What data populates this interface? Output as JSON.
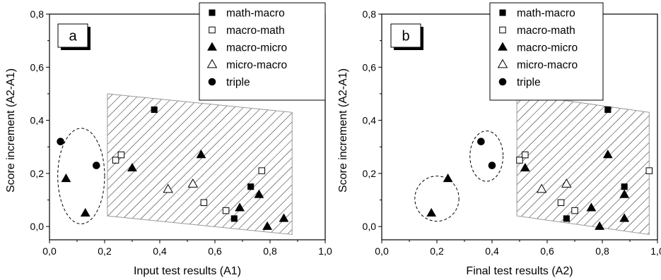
{
  "chart_data": [
    {
      "type": "scatter",
      "panel_label": "a",
      "xlabel": "Input test results (A1)",
      "ylabel": "Score increment (A2-A1)",
      "xlim": [
        0,
        1
      ],
      "ylim": [
        -0.05,
        0.8
      ],
      "xticks": [
        "0,0",
        "0,2",
        "0,4",
        "0,6",
        "0,8",
        "1,0"
      ],
      "yticks": [
        "0,0",
        "0,2",
        "0,4",
        "0,6",
        "0,8"
      ],
      "grid": false,
      "legend_position": "top-right",
      "series": [
        {
          "name": "math-macro",
          "marker": "square-filled",
          "points": [
            [
              0.38,
              0.44
            ],
            [
              0.73,
              0.15
            ],
            [
              0.67,
              0.03
            ]
          ]
        },
        {
          "name": "macro-math",
          "marker": "square-open",
          "points": [
            [
              0.24,
              0.25
            ],
            [
              0.26,
              0.27
            ],
            [
              0.56,
              0.09
            ],
            [
              0.64,
              0.06
            ],
            [
              0.77,
              0.21
            ]
          ]
        },
        {
          "name": "macro-micro",
          "marker": "triangle-filled",
          "points": [
            [
              0.06,
              0.18
            ],
            [
              0.13,
              0.05
            ],
            [
              0.3,
              0.22
            ],
            [
              0.55,
              0.27
            ],
            [
              0.69,
              0.07
            ],
            [
              0.76,
              0.12
            ],
            [
              0.79,
              0.0
            ],
            [
              0.85,
              0.03
            ]
          ]
        },
        {
          "name": "micro-macro",
          "marker": "triangle-open",
          "points": [
            [
              0.43,
              0.14
            ],
            [
              0.52,
              0.16
            ]
          ]
        },
        {
          "name": "triple",
          "marker": "circle-filled",
          "points": [
            [
              0.04,
              0.32
            ],
            [
              0.17,
              0.23
            ]
          ]
        }
      ],
      "annotations": {
        "ellipse": {
          "cx": 0.115,
          "cy": 0.19,
          "rx": 0.085,
          "ry": 0.18
        },
        "hatched_region": [
          [
            0.21,
            0.5
          ],
          [
            0.88,
            0.43
          ],
          [
            0.88,
            -0.03
          ],
          [
            0.21,
            0.04
          ]
        ]
      }
    },
    {
      "type": "scatter",
      "panel_label": "b",
      "xlabel": "Final test results (A2)",
      "ylabel": "Score increment (A2-A1)",
      "xlim": [
        0,
        1
      ],
      "ylim": [
        -0.05,
        0.8
      ],
      "xticks": [
        "0,0",
        "0,2",
        "0,4",
        "0,6",
        "0,8",
        "1,0"
      ],
      "yticks": [
        "0,0",
        "0,2",
        "0,4",
        "0,6",
        "0,8"
      ],
      "grid": false,
      "legend_position": "top-center",
      "series": [
        {
          "name": "math-macro",
          "marker": "square-filled",
          "points": [
            [
              0.82,
              0.44
            ],
            [
              0.88,
              0.15
            ],
            [
              0.67,
              0.03
            ]
          ]
        },
        {
          "name": "macro-math",
          "marker": "square-open",
          "points": [
            [
              0.5,
              0.25
            ],
            [
              0.52,
              0.27
            ],
            [
              0.65,
              0.09
            ],
            [
              0.7,
              0.06
            ],
            [
              0.97,
              0.21
            ]
          ]
        },
        {
          "name": "macro-micro",
          "marker": "triangle-filled",
          "points": [
            [
              0.18,
              0.05
            ],
            [
              0.24,
              0.18
            ],
            [
              0.52,
              0.22
            ],
            [
              0.82,
              0.27
            ],
            [
              0.76,
              0.07
            ],
            [
              0.88,
              0.12
            ],
            [
              0.79,
              0.0
            ],
            [
              0.88,
              0.03
            ]
          ]
        },
        {
          "name": "micro-macro",
          "marker": "triangle-open",
          "points": [
            [
              0.58,
              0.14
            ],
            [
              0.67,
              0.16
            ]
          ]
        },
        {
          "name": "triple",
          "marker": "circle-filled",
          "points": [
            [
              0.36,
              0.32
            ],
            [
              0.4,
              0.23
            ]
          ]
        }
      ],
      "annotations": {
        "ellipses": [
          {
            "cx": 0.2,
            "cy": 0.105,
            "rx": 0.08,
            "ry": 0.085
          },
          {
            "cx": 0.38,
            "cy": 0.265,
            "rx": 0.06,
            "ry": 0.095
          }
        ],
        "hatched_region": [
          [
            0.49,
            0.5
          ],
          [
            0.97,
            0.43
          ],
          [
            0.97,
            -0.03
          ],
          [
            0.49,
            0.04
          ]
        ]
      }
    }
  ]
}
